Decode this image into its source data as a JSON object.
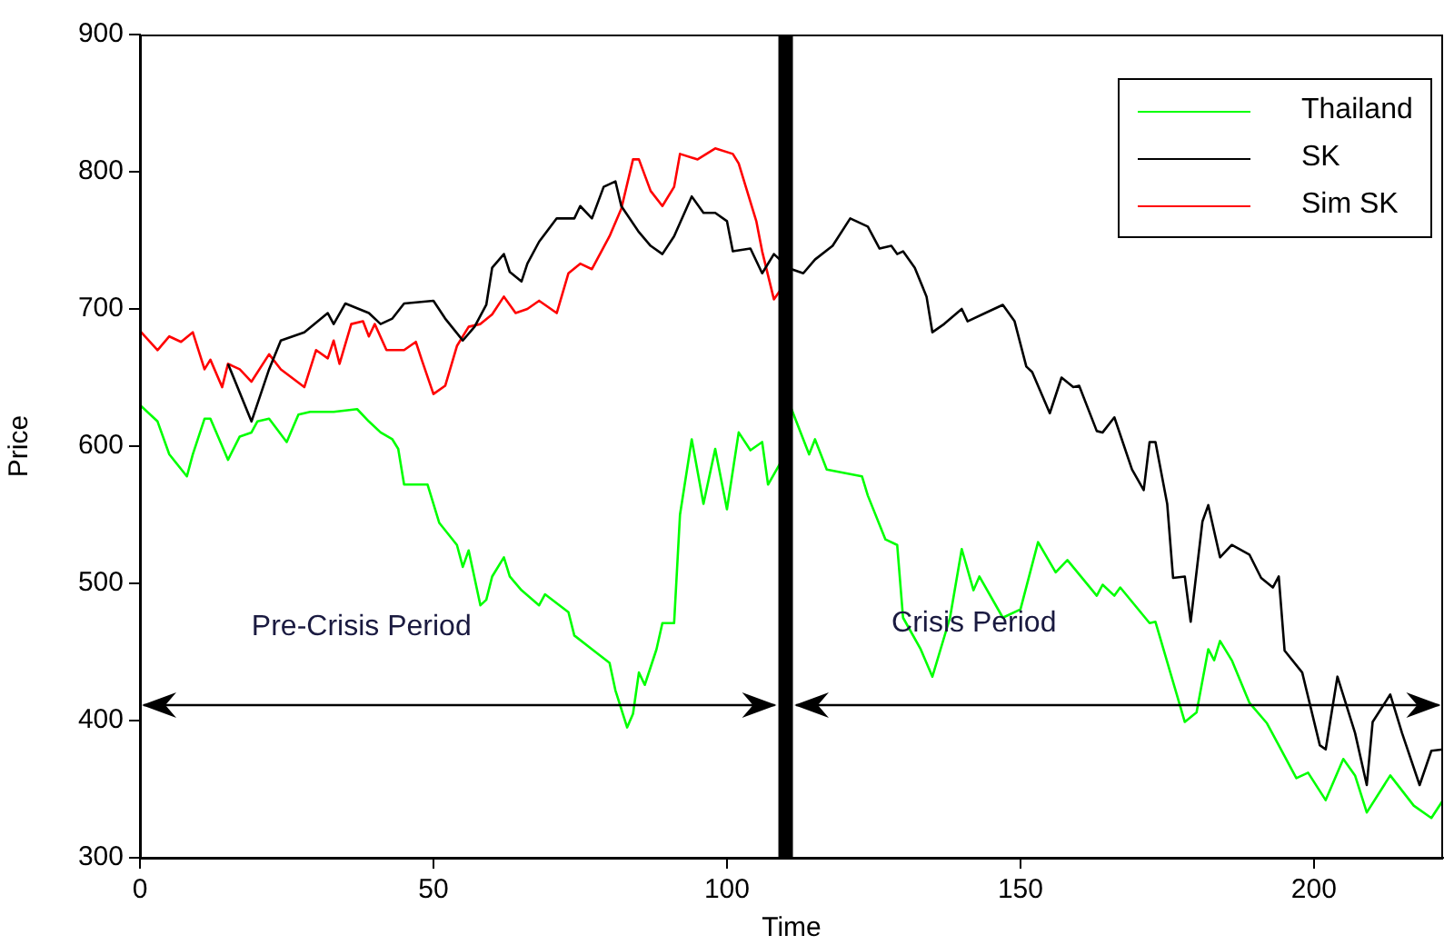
{
  "chart_data": {
    "type": "line",
    "xlabel": "Time",
    "ylabel": "Price",
    "xlim": [
      0,
      222
    ],
    "xticks": [
      0,
      50,
      100,
      150,
      200
    ],
    "ylim": [
      300,
      900
    ],
    "yticks": [
      300,
      400,
      500,
      600,
      700,
      800,
      900
    ],
    "grid": false,
    "legend": "top right",
    "marker": "none",
    "line_style": "solid",
    "annotations": [
      "Pre-Crisis Period",
      "Crisis Period"
    ],
    "ref_lines": [
      {
        "axis": "x",
        "value": 110,
        "color": "#000000"
      }
    ],
    "series": [
      {
        "name": "Thailand",
        "color": "#00ff00",
        "x": [
          0,
          3,
          5,
          8,
          9,
          11,
          12,
          15,
          17,
          19,
          20,
          22,
          25,
          27,
          29,
          33,
          37,
          39,
          41,
          43,
          44,
          45,
          49,
          51,
          54,
          55,
          56,
          58,
          59,
          60,
          62,
          63,
          65,
          68,
          69,
          73,
          74,
          77,
          80,
          81,
          83,
          84,
          85,
          86,
          88,
          89,
          91,
          92,
          94,
          96,
          98,
          100,
          102,
          104,
          106,
          107,
          109,
          111,
          114,
          115,
          117,
          123,
          124,
          127,
          129,
          130,
          133,
          135,
          138,
          140,
          142,
          143,
          147,
          150,
          153,
          156,
          158,
          163,
          164,
          166,
          167,
          172,
          173,
          178,
          180,
          182,
          183,
          184,
          186,
          189,
          192,
          194,
          197,
          199,
          202,
          205,
          207,
          209,
          213,
          217,
          220,
          222
        ],
        "values": [
          630,
          618,
          594,
          578,
          594,
          620,
          620,
          590,
          607,
          610,
          618,
          620,
          603,
          623,
          625,
          625,
          627,
          618,
          610,
          605,
          598,
          572,
          572,
          544,
          528,
          512,
          524,
          484,
          488,
          505,
          519,
          505,
          495,
          484,
          492,
          479,
          462,
          452,
          442,
          422,
          395,
          405,
          435,
          426,
          452,
          471,
          471,
          550,
          605,
          558,
          598,
          554,
          610,
          597,
          603,
          572,
          587,
          627,
          594,
          605,
          583,
          578,
          564,
          532,
          528,
          475,
          452,
          432,
          475,
          525,
          495,
          505,
          475,
          481,
          530,
          508,
          517,
          491,
          499,
          491,
          497,
          471,
          472,
          399,
          406,
          452,
          444,
          458,
          444,
          413,
          398,
          382,
          358,
          362,
          342,
          372,
          360,
          333,
          360,
          338,
          329,
          342
        ]
      },
      {
        "name": "SK",
        "color": "#000000",
        "x": [
          15,
          19,
          22,
          24,
          28,
          32,
          33,
          35,
          39,
          41,
          43,
          45,
          50,
          52,
          55,
          57,
          59,
          60,
          62,
          63,
          65,
          66,
          68,
          71,
          74,
          75,
          77,
          79,
          81,
          82,
          85,
          87,
          89,
          91,
          94,
          96,
          98,
          100,
          101,
          104,
          106,
          108,
          109,
          111,
          113,
          115,
          118,
          121,
          124,
          126,
          128,
          129,
          130,
          132,
          134,
          135,
          137,
          140,
          141,
          144,
          147,
          149,
          151,
          152,
          155,
          157,
          159,
          160,
          163,
          164,
          166,
          169,
          171,
          172,
          173,
          175,
          176,
          178,
          179,
          181,
          182,
          184,
          186,
          189,
          191,
          193,
          194,
          195,
          198,
          201,
          202,
          204,
          207,
          209,
          210,
          213,
          215,
          218,
          220,
          222
        ],
        "values": [
          660,
          618,
          656,
          677,
          683,
          697,
          689,
          704,
          697,
          689,
          693,
          704,
          706,
          693,
          677,
          687,
          703,
          730,
          740,
          727,
          720,
          733,
          749,
          766,
          766,
          775,
          766,
          789,
          793,
          775,
          756,
          746,
          740,
          753,
          782,
          770,
          770,
          764,
          742,
          744,
          726,
          740,
          736,
          729,
          726,
          736,
          746,
          766,
          760,
          744,
          746,
          740,
          742,
          730,
          709,
          683,
          689,
          700,
          691,
          697,
          703,
          691,
          658,
          654,
          624,
          650,
          643,
          644,
          611,
          610,
          621,
          583,
          568,
          603,
          603,
          558,
          504,
          505,
          472,
          545,
          557,
          519,
          528,
          521,
          504,
          497,
          505,
          451,
          435,
          382,
          379,
          432,
          391,
          353,
          399,
          419,
          391,
          353,
          378,
          379
        ]
      },
      {
        "name": "Sim SK",
        "color": "#ff0000",
        "x": [
          0,
          3,
          5,
          7,
          9,
          11,
          12,
          14,
          15,
          17,
          19,
          22,
          24,
          28,
          30,
          32,
          33,
          34,
          36,
          38,
          39,
          40,
          42,
          45,
          47,
          48,
          50,
          52,
          54,
          56,
          58,
          60,
          62,
          64,
          66,
          68,
          71,
          73,
          75,
          77,
          80,
          82,
          84,
          85,
          87,
          89,
          91,
          92,
          95,
          98,
          101,
          102,
          105,
          106,
          108,
          109
        ],
        "values": [
          684,
          670,
          680,
          676,
          683,
          656,
          663,
          643,
          660,
          656,
          647,
          667,
          656,
          643,
          670,
          664,
          677,
          660,
          689,
          691,
          680,
          689,
          670,
          670,
          676,
          663,
          638,
          644,
          673,
          687,
          689,
          696,
          709,
          697,
          700,
          706,
          697,
          726,
          733,
          729,
          753,
          773,
          809,
          809,
          786,
          775,
          789,
          813,
          809,
          817,
          813,
          806,
          764,
          742,
          707,
          713
        ]
      }
    ]
  }
}
